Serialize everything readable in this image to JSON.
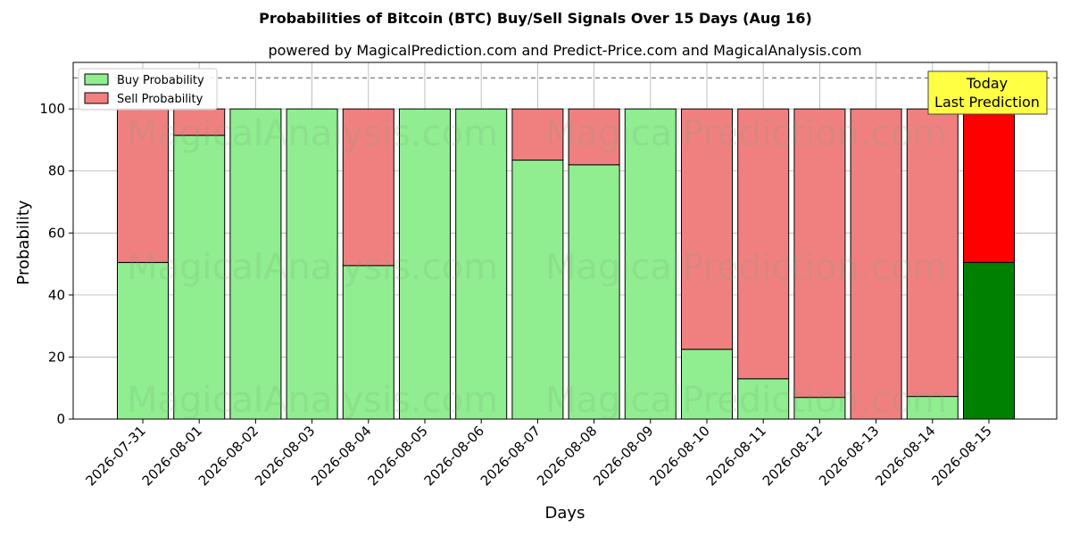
{
  "chart_data": {
    "type": "bar",
    "stacked": true,
    "title": "Probabilities of Bitcoin (BTC) Buy/Sell Signals Over 15 Days (Aug 16)",
    "subtitle": "powered by MagicalPrediction.com and Predict-Price.com and MagicalAnalysis.com",
    "xlabel": "Days",
    "ylabel": "Probability",
    "ylim": [
      0,
      115
    ],
    "yticks": [
      0,
      20,
      40,
      60,
      80,
      100
    ],
    "grid": true,
    "legend_position": "top-left",
    "reference_line": 110,
    "categories": [
      "2026-07-31",
      "2026-08-01",
      "2026-08-02",
      "2026-08-03",
      "2026-08-04",
      "2026-08-05",
      "2026-08-06",
      "2026-08-07",
      "2026-08-08",
      "2026-08-09",
      "2026-08-10",
      "2026-08-11",
      "2026-08-12",
      "2026-08-13",
      "2026-08-14",
      "2026-08-15"
    ],
    "series": [
      {
        "name": "Buy Probability",
        "color": "#90ee90",
        "highlight_color": "#008000",
        "values": [
          50.5,
          91.5,
          100,
          100,
          49.5,
          100,
          100,
          83.5,
          82,
          100,
          22.5,
          13,
          7,
          0,
          7.3,
          50.5
        ]
      },
      {
        "name": "Sell Probability",
        "color": "#f08080",
        "highlight_color": "#ff0000",
        "values": [
          49.5,
          8.5,
          0,
          0,
          50.5,
          0,
          0,
          16.5,
          18,
          0,
          77.5,
          87,
          93,
          100,
          92.7,
          49.5
        ]
      }
    ],
    "annotation": {
      "lines": [
        "Today",
        "Last Prediction"
      ],
      "background": "#ffff44"
    },
    "watermarks": [
      "MagicalAnalysis.com",
      "MagicalPrediction.com"
    ]
  }
}
